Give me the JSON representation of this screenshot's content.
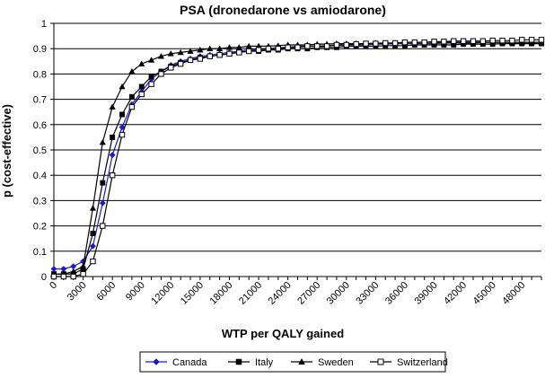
{
  "chart_data": {
    "type": "line",
    "title": "PSA (dronedarone vs amiodarone)",
    "xlabel": "WTP per QALY gained",
    "ylabel": "p (cost-effective)",
    "xlim": [
      0,
      50000
    ],
    "ylim": [
      0,
      1
    ],
    "y_ticks": [
      "0",
      "0.1",
      "0.2",
      "0.3",
      "0.4",
      "0.5",
      "0.6",
      "0.7",
      "0.8",
      "0.9",
      "1"
    ],
    "y_tick_values": [
      0,
      0.1,
      0.2,
      0.3,
      0.4,
      0.5,
      0.6,
      0.7,
      0.8,
      0.9,
      1
    ],
    "x_ticks": [
      "0",
      "3000",
      "6000",
      "9000",
      "12000",
      "15000",
      "18000",
      "21000",
      "24000",
      "27000",
      "30000",
      "33000",
      "36000",
      "39000",
      "42000",
      "45000",
      "48000"
    ],
    "x_tick_values": [
      0,
      3000,
      6000,
      9000,
      12000,
      15000,
      18000,
      21000,
      24000,
      27000,
      30000,
      33000,
      36000,
      39000,
      42000,
      45000,
      48000
    ],
    "grid": "horizontal",
    "legend_position": "bottom",
    "x": [
      0,
      1000,
      2000,
      3000,
      4000,
      5000,
      6000,
      7000,
      8000,
      9000,
      10000,
      11000,
      12000,
      13000,
      14000,
      15000,
      16000,
      17000,
      18000,
      19000,
      20000,
      21000,
      22000,
      23000,
      24000,
      25000,
      26000,
      27000,
      28000,
      29000,
      30000,
      31000,
      32000,
      33000,
      34000,
      35000,
      36000,
      37000,
      38000,
      39000,
      40000,
      41000,
      42000,
      43000,
      44000,
      45000,
      46000,
      47000,
      48000,
      49000,
      50000
    ],
    "series": [
      {
        "name": "Canada",
        "color": "#1a1acc",
        "marker": "diamond",
        "values": [
          0.03,
          0.03,
          0.04,
          0.06,
          0.12,
          0.29,
          0.48,
          0.59,
          0.68,
          0.73,
          0.78,
          0.81,
          0.835,
          0.85,
          0.86,
          0.87,
          0.875,
          0.88,
          0.885,
          0.89,
          0.895,
          0.9,
          0.9,
          0.905,
          0.905,
          0.91,
          0.91,
          0.91,
          0.912,
          0.912,
          0.915,
          0.915,
          0.915,
          0.918,
          0.918,
          0.92,
          0.92,
          0.92,
          0.92,
          0.92,
          0.922,
          0.922,
          0.922,
          0.922,
          0.925,
          0.925,
          0.925,
          0.925,
          0.925,
          0.925,
          0.925
        ]
      },
      {
        "name": "Italy",
        "color": "#000000",
        "marker": "square",
        "values": [
          0.01,
          0.01,
          0.01,
          0.03,
          0.17,
          0.37,
          0.55,
          0.64,
          0.71,
          0.75,
          0.79,
          0.81,
          0.83,
          0.845,
          0.855,
          0.865,
          0.87,
          0.875,
          0.88,
          0.885,
          0.89,
          0.89,
          0.895,
          0.895,
          0.9,
          0.9,
          0.9,
          0.905,
          0.905,
          0.905,
          0.91,
          0.91,
          0.91,
          0.91,
          0.912,
          0.912,
          0.912,
          0.915,
          0.915,
          0.915,
          0.915,
          0.915,
          0.918,
          0.918,
          0.918,
          0.918,
          0.92,
          0.92,
          0.92,
          0.92,
          0.92
        ]
      },
      {
        "name": "Sweden",
        "color": "#000000",
        "marker": "triangle",
        "values": [
          0.01,
          0.01,
          0.02,
          0.04,
          0.27,
          0.53,
          0.67,
          0.75,
          0.81,
          0.84,
          0.855,
          0.87,
          0.88,
          0.885,
          0.89,
          0.895,
          0.9,
          0.9,
          0.905,
          0.905,
          0.91,
          0.91,
          0.91,
          0.912,
          0.915,
          0.915,
          0.915,
          0.918,
          0.918,
          0.92,
          0.92,
          0.92,
          0.92,
          0.922,
          0.922,
          0.922,
          0.925,
          0.925,
          0.925,
          0.925,
          0.925,
          0.925,
          0.925,
          0.925,
          0.925,
          0.925,
          0.925,
          0.925,
          0.925,
          0.925,
          0.925
        ]
      },
      {
        "name": "Switzerland",
        "color": "#000000",
        "marker": "square-open",
        "values": [
          0.0,
          0.0,
          0.0,
          0.01,
          0.06,
          0.2,
          0.4,
          0.56,
          0.67,
          0.72,
          0.76,
          0.8,
          0.825,
          0.84,
          0.855,
          0.86,
          0.87,
          0.875,
          0.88,
          0.885,
          0.89,
          0.895,
          0.9,
          0.9,
          0.905,
          0.905,
          0.91,
          0.91,
          0.91,
          0.915,
          0.915,
          0.918,
          0.92,
          0.92,
          0.922,
          0.922,
          0.925,
          0.925,
          0.925,
          0.928,
          0.928,
          0.93,
          0.93,
          0.93,
          0.93,
          0.932,
          0.932,
          0.932,
          0.935,
          0.935,
          0.935
        ]
      }
    ]
  }
}
